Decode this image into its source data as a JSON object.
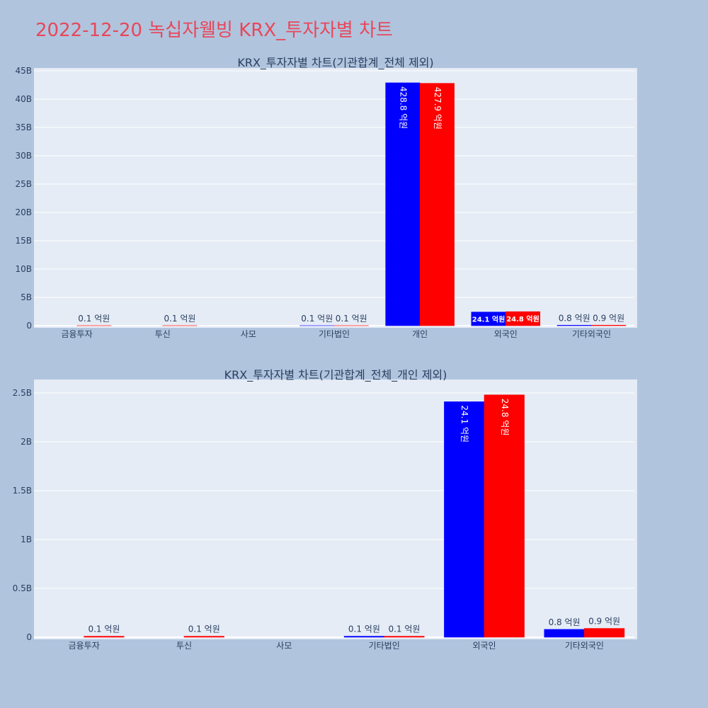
{
  "page_title": "2022-12-20 녹십자웰빙 KRX_투자자별 차트",
  "colors": {
    "series_a": "#0000ff",
    "series_b": "#ff0000",
    "plot_bg": "#e5ecf6",
    "page_bg": "#b0c4de",
    "title": "#e8475a"
  },
  "chart_data": [
    {
      "type": "bar",
      "title": "KRX_투자자별 차트(기관합계_전체 제외)",
      "categories": [
        "금융투자",
        "투신",
        "사모",
        "기타법인",
        "개인",
        "외국인",
        "기타외국인"
      ],
      "series": [
        {
          "values": [
            0,
            0,
            0,
            10000000,
            42880000000,
            2410000000,
            80000000
          ],
          "labels": [
            "",
            "",
            "",
            "0.1 억원",
            "428.8 억원",
            "24.1 억원",
            "0.8 억원"
          ]
        },
        {
          "values": [
            10000000,
            10000000,
            0,
            10000000,
            42790000000,
            2480000000,
            90000000
          ],
          "labels": [
            "0.1 억원",
            "0.1 억원",
            "",
            "0.1 억원",
            "427.9 억원",
            "24.8 억원",
            "0.9 억원"
          ]
        }
      ],
      "ylim": [
        0,
        45000000000
      ],
      "yticks": [
        0,
        5000000000,
        10000000000,
        15000000000,
        20000000000,
        25000000000,
        30000000000,
        35000000000,
        40000000000,
        45000000000
      ],
      "ytick_labels": [
        "0",
        "5B",
        "10B",
        "15B",
        "20B",
        "25B",
        "30B",
        "35B",
        "40B",
        "45B"
      ],
      "grid": true,
      "legend": "none"
    },
    {
      "type": "bar",
      "title": "KRX_투자자별 차트(기관합계_전체_개인 제외)",
      "categories": [
        "금융투자",
        "투신",
        "사모",
        "기타법인",
        "외국인",
        "기타외국인"
      ],
      "series": [
        {
          "values": [
            0,
            0,
            0,
            10000000,
            2410000000,
            80000000
          ],
          "labels": [
            "",
            "",
            "",
            "0.1 억원",
            "24.1 억원",
            "0.8 억원"
          ]
        },
        {
          "values": [
            10000000,
            10000000,
            0,
            10000000,
            2480000000,
            90000000
          ],
          "labels": [
            "0.1 억원",
            "0.1 억원",
            "",
            "0.1 억원",
            "24.8 억원",
            "0.9 억원"
          ]
        }
      ],
      "ylim": [
        0,
        2600000000
      ],
      "yticks": [
        0,
        500000000,
        1000000000,
        1500000000,
        2000000000,
        2500000000
      ],
      "ytick_labels": [
        "0",
        "0.5B",
        "1B",
        "1.5B",
        "2B",
        "2.5B"
      ],
      "grid": true,
      "legend": "none"
    }
  ]
}
